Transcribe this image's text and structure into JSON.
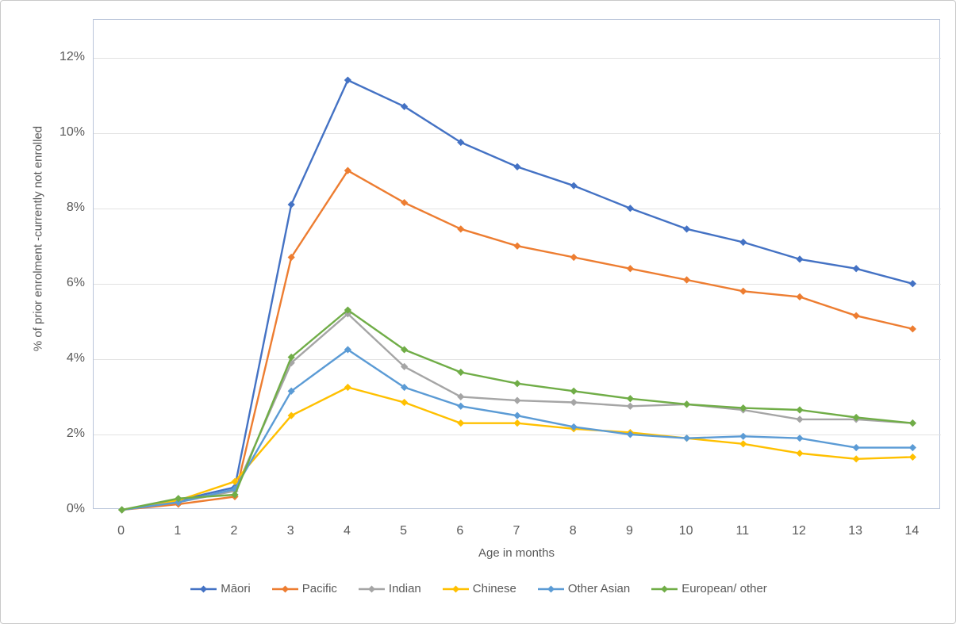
{
  "chart_data": {
    "type": "line",
    "title": "",
    "xlabel": "Age in months",
    "ylabel": "% of prior enrolment -currently not enrolled",
    "x": [
      0,
      1,
      2,
      3,
      4,
      5,
      6,
      7,
      8,
      9,
      10,
      11,
      12,
      13,
      14
    ],
    "ylim": [
      0,
      13
    ],
    "yticks": [
      0,
      2,
      4,
      6,
      8,
      10,
      12
    ],
    "ytick_labels": [
      "0%",
      "2%",
      "4%",
      "6%",
      "8%",
      "10%",
      "12%"
    ],
    "grid": true,
    "legend_position": "bottom",
    "marker": "diamond",
    "series": [
      {
        "name": "Māori",
        "color": "#4472C4",
        "values": [
          0,
          0.25,
          0.6,
          8.1,
          11.4,
          10.7,
          9.75,
          9.1,
          8.6,
          8.0,
          7.45,
          7.1,
          6.65,
          6.4,
          6.0
        ]
      },
      {
        "name": "Pacific",
        "color": "#ED7D31",
        "values": [
          0,
          0.15,
          0.35,
          6.7,
          9.0,
          8.15,
          7.45,
          7.0,
          6.7,
          6.4,
          6.1,
          5.8,
          5.65,
          5.15,
          4.8
        ]
      },
      {
        "name": "Indian",
        "color": "#A5A5A5",
        "values": [
          0,
          0.2,
          0.5,
          3.9,
          5.2,
          3.8,
          3.0,
          2.9,
          2.85,
          2.75,
          2.8,
          2.65,
          2.4,
          2.4,
          2.3
        ]
      },
      {
        "name": "Chinese",
        "color": "#FFC000",
        "values": [
          0,
          0.25,
          0.75,
          2.5,
          3.25,
          2.85,
          2.3,
          2.3,
          2.15,
          2.05,
          1.9,
          1.75,
          1.5,
          1.35,
          1.4
        ]
      },
      {
        "name": "Other Asian",
        "color": "#5B9BD5",
        "values": [
          0,
          0.2,
          0.55,
          3.15,
          4.25,
          3.25,
          2.75,
          2.5,
          2.2,
          2.0,
          1.9,
          1.95,
          1.9,
          1.65,
          1.65
        ]
      },
      {
        "name": "European/ other",
        "color": "#70AD47",
        "values": [
          0,
          0.3,
          0.4,
          4.05,
          5.3,
          4.25,
          3.65,
          3.35,
          3.15,
          2.95,
          2.8,
          2.7,
          2.65,
          2.45,
          2.3
        ]
      }
    ],
    "colors": {
      "gridline": "#e2e2e2",
      "plot_border": "#b9c5da",
      "text": "#595959"
    }
  }
}
